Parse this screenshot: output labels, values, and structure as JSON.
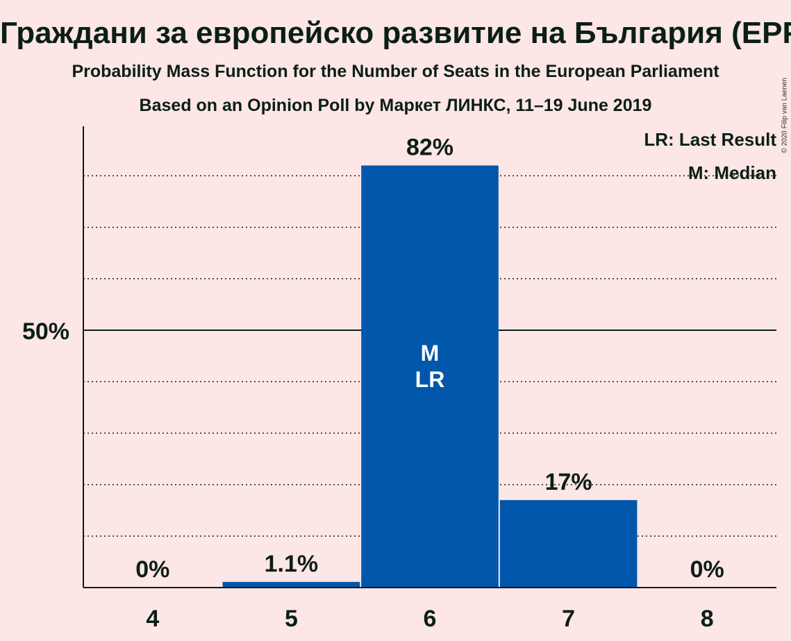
{
  "title": "Граждани за европейско развитие на България (EPP)",
  "subtitle": "Probability Mass Function for the Number of Seats in the European Parliament",
  "subtitle2": "Based on an Opinion Poll by Маркет ЛИНКС, 11–19 June 2019",
  "copyright": "© 2020 Filip van Laenen",
  "legend": {
    "last_result": "LR: Last Result",
    "median": "M: Median"
  },
  "colors": {
    "bar": "#0057ab",
    "background": "#fde6e6",
    "text": "#0b1f14"
  },
  "chart_data": {
    "type": "bar",
    "categories": [
      "4",
      "5",
      "6",
      "7",
      "8"
    ],
    "values": [
      0,
      1.1,
      82,
      17,
      0
    ],
    "value_labels": [
      "0%",
      "1.1%",
      "82%",
      "17%",
      "0%"
    ],
    "ylim": [
      0,
      90
    ],
    "y_tick_labels": [
      {
        "value": 50,
        "label": "50%"
      }
    ],
    "gridlines": [
      10,
      20,
      30,
      40,
      60,
      70,
      80
    ],
    "bar_annotations": [
      {
        "category": "6",
        "lines": [
          "M",
          "LR"
        ]
      }
    ],
    "legend_position": "top-right"
  }
}
